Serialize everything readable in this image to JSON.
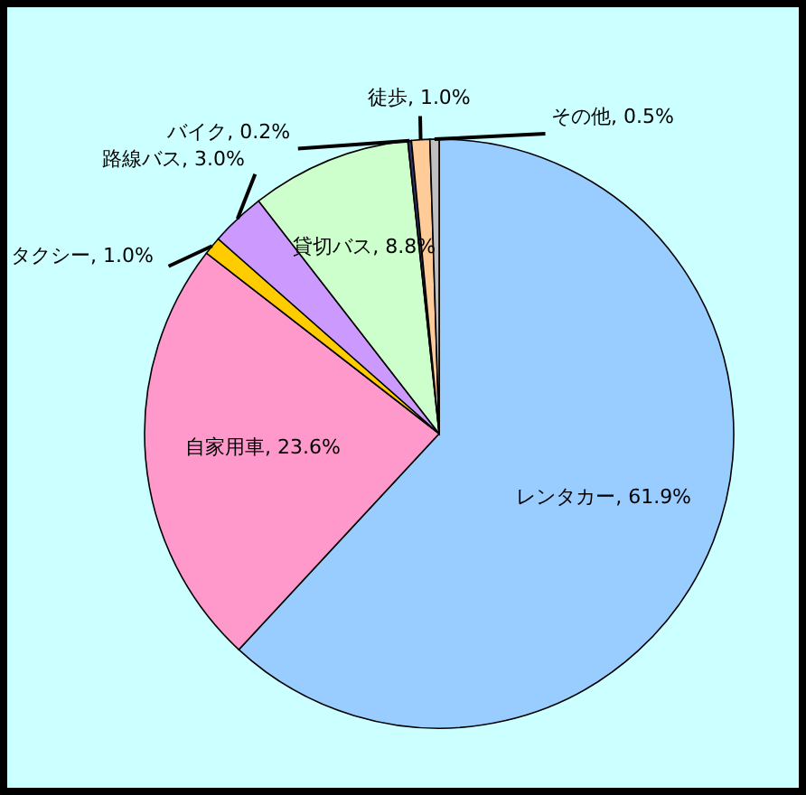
{
  "chart_data": {
    "type": "pie",
    "categories": [
      "レンタカー",
      "自家用車",
      "タクシー",
      "路線バス",
      "貸切バス",
      "バイク",
      "徒歩",
      "その他"
    ],
    "values": [
      61.9,
      23.6,
      1.0,
      3.0,
      8.8,
      0.2,
      1.0,
      0.5
    ],
    "value_labels": [
      "61.9%",
      "23.6%",
      "1.0%",
      "3.0%",
      "8.8%",
      "0.2%",
      "1.0%",
      "0.5%"
    ],
    "colors": [
      "#99ccff",
      "#ff99cc",
      "#ffcc00",
      "#cc99ff",
      "#ccffcc",
      "#333366",
      "#ffcc99",
      "#c0c0c0"
    ],
    "legend": false
  }
}
